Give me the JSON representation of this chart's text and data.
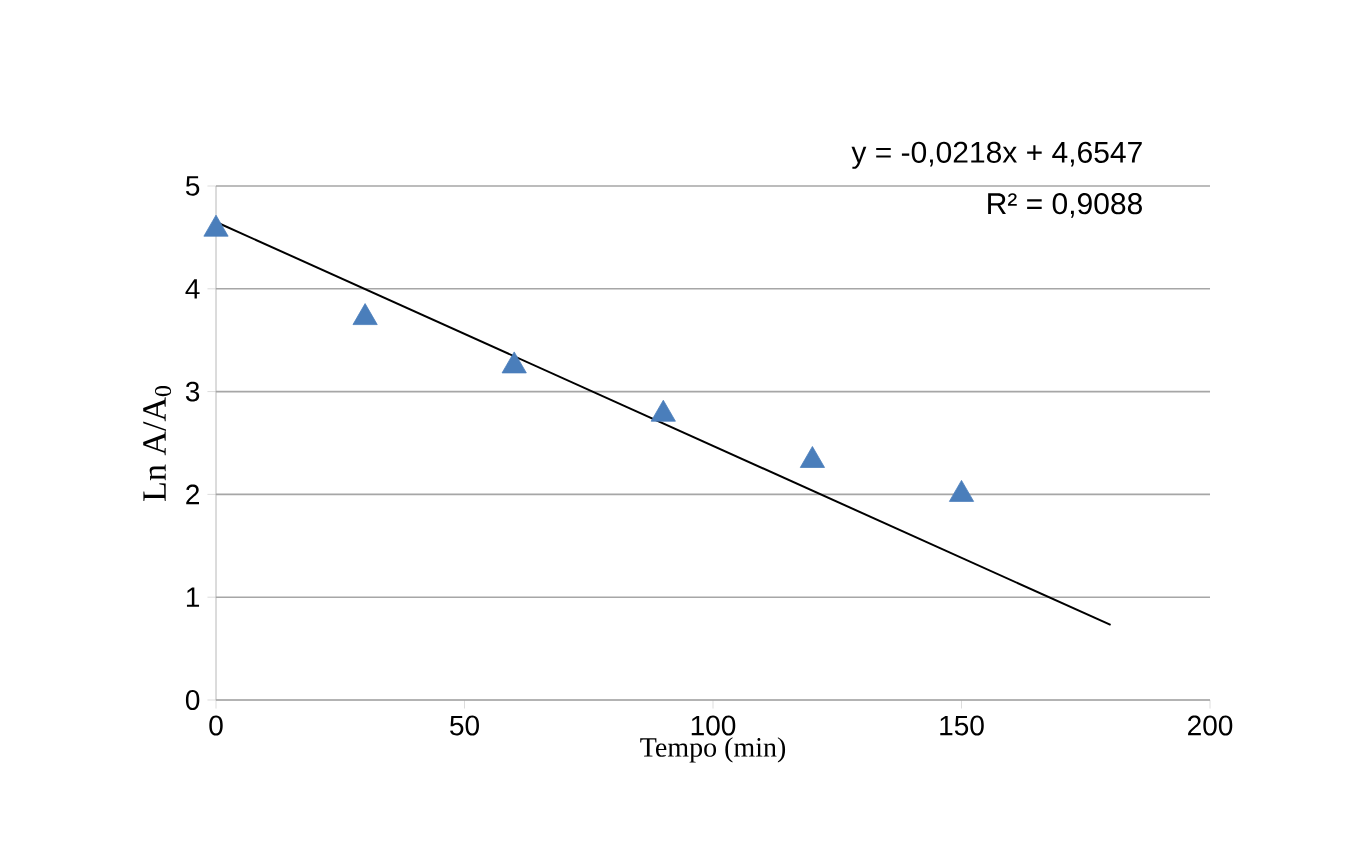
{
  "chart_data": {
    "type": "scatter",
    "xlabel": "Tempo (min)",
    "ylabel": "Ln A/A$_{0}$",
    "xlim": [
      0,
      200
    ],
    "xticks": [
      0,
      50,
      100,
      150,
      200
    ],
    "ylim": [
      0,
      5
    ],
    "yticks": [
      0,
      1,
      2,
      3,
      4,
      5
    ],
    "grid": "y",
    "marker": "triangle",
    "series": [
      {
        "color": "#4a7ebb",
        "x": [
          0,
          30,
          60,
          90,
          120,
          150
        ],
        "values": [
          4.58,
          3.72,
          3.25,
          2.78,
          2.33,
          2.0
        ]
      },
      {
        "type": "line",
        "color": "#000000",
        "marker": "none",
        "x": [
          0,
          180
        ],
        "values": [
          4.65,
          0.73
        ]
      }
    ],
    "annotations": [
      "y = -0,0218x + 4,6547",
      "R² = 0,9088"
    ]
  }
}
